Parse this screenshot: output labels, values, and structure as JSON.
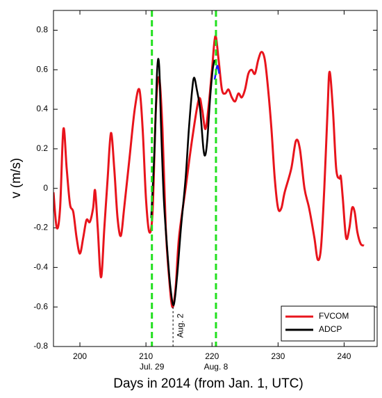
{
  "chart_data": {
    "type": "line",
    "x_label": "Days in 2014 (from Jan. 1, UTC)",
    "y_label": "v (m/s)",
    "xlim": [
      196,
      245
    ],
    "ylim": [
      -0.8,
      0.9
    ],
    "xticks": [
      200,
      210,
      220,
      230,
      240
    ],
    "yticks": [
      -0.8,
      -0.6,
      -0.4,
      -0.2,
      0,
      0.2,
      0.4,
      0.6,
      0.8
    ],
    "legend": "lower right",
    "series": [
      {
        "name": "FVCOM",
        "color": "#e8141c",
        "x": [
          196,
          196.5,
          197,
          197.5,
          198,
          198.5,
          199,
          199.5,
          200,
          200.5,
          201,
          201.5,
          202,
          202.3,
          202.7,
          203.2,
          203.7,
          204.2,
          204.7,
          205.2,
          205.7,
          206.2,
          206.7,
          207.5,
          208.3,
          209,
          209.5,
          210,
          210.5,
          211,
          211.5,
          212,
          212.5,
          213,
          213.5,
          214,
          214.5,
          215,
          216,
          217,
          218,
          218.5,
          219,
          219.5,
          220,
          220.5,
          221,
          221.5,
          222,
          222.5,
          223,
          223.5,
          224,
          224.5,
          225,
          225.5,
          226,
          226.5,
          227,
          227.5,
          228,
          228.5,
          229,
          229.5,
          230,
          230.5,
          231,
          232,
          232.7,
          233.3,
          234,
          234.7,
          235.5,
          236,
          236.5,
          237,
          237.5,
          237.8,
          238.3,
          238.8,
          239.3,
          239.5,
          239.8,
          240.3,
          240.8,
          241.2,
          241.6,
          242,
          242.5,
          243
        ],
        "values": [
          -0.02,
          -0.2,
          -0.1,
          0.3,
          0.1,
          -0.08,
          -0.12,
          -0.25,
          -0.33,
          -0.25,
          -0.16,
          -0.17,
          -0.1,
          -0.01,
          -0.2,
          -0.45,
          -0.2,
          0.05,
          0.28,
          0.1,
          -0.15,
          -0.24,
          -0.1,
          0.15,
          0.4,
          0.5,
          0.3,
          -0.05,
          -0.22,
          -0.12,
          0.4,
          0.56,
          0.3,
          -0.2,
          -0.45,
          -0.6,
          -0.5,
          -0.25,
          0.0,
          0.25,
          0.45,
          0.4,
          0.3,
          0.42,
          0.6,
          0.77,
          0.65,
          0.5,
          0.48,
          0.5,
          0.46,
          0.44,
          0.48,
          0.46,
          0.5,
          0.58,
          0.6,
          0.58,
          0.65,
          0.69,
          0.65,
          0.5,
          0.3,
          0.05,
          -0.1,
          -0.1,
          -0.02,
          0.1,
          0.24,
          0.2,
          0.0,
          -0.1,
          -0.25,
          -0.36,
          -0.3,
          0.0,
          0.4,
          0.59,
          0.4,
          0.1,
          0.05,
          0.06,
          -0.05,
          -0.25,
          -0.2,
          -0.1,
          -0.12,
          -0.22,
          -0.28,
          -0.29
        ]
      },
      {
        "name": "ADCP",
        "color": "#000000",
        "x": [
          210.8,
          211.3,
          211.7,
          212,
          212.3,
          212.7,
          213.2,
          213.7,
          214.2,
          214.7,
          215.3,
          216,
          216.5,
          217,
          217.3,
          217.7,
          218.2,
          218.7,
          219,
          219.3,
          219.7,
          220.1,
          220.4
        ],
        "values": [
          -0.15,
          0.2,
          0.6,
          0.62,
          0.3,
          -0.05,
          -0.3,
          -0.5,
          -0.59,
          -0.45,
          -0.2,
          0.05,
          0.3,
          0.5,
          0.56,
          0.5,
          0.4,
          0.2,
          0.17,
          0.25,
          0.45,
          0.6,
          0.65
        ]
      },
      {
        "color": "#1a1aff",
        "x": [
          220.4,
          220.8,
          221.1
        ],
        "values": [
          0.55,
          0.62,
          0.58
        ]
      }
    ],
    "vlines": [
      {
        "x": 210.9,
        "label": "Jul. 29",
        "color": "#22e01e"
      },
      {
        "x": 220.6,
        "label": "Aug. 8",
        "color": "#22e01e"
      }
    ],
    "annotation": {
      "text": "Aug. 2",
      "x": 214.1,
      "y": -0.6
    }
  }
}
